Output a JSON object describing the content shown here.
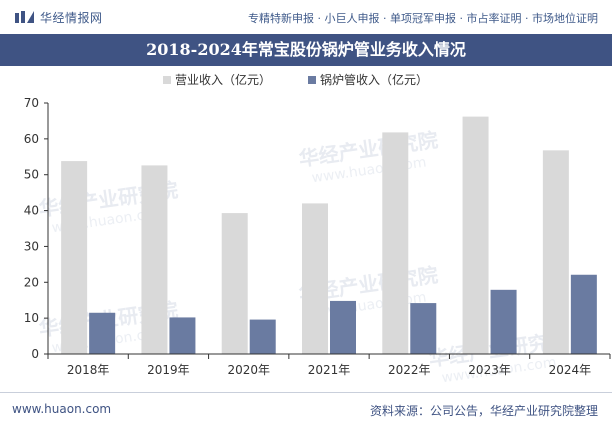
{
  "header": {
    "brand": "华经情报网",
    "services": "专精特新申报 · 小巨人申报 · 单项冠军申报 · 市占率证明 · 市场地位证明"
  },
  "footer": {
    "url": "www.huaon.com",
    "source": "资料来源：公司公告，华经产业研究院整理"
  },
  "watermark": {
    "cn": "华经产业研究院",
    "url": "www.huaon.com"
  },
  "colors": {
    "revenue": "#d9d9d9",
    "boiler": "#6a7ba1",
    "title_bg": "#3f5383"
  },
  "chart_data": {
    "type": "bar",
    "title": "2018-2024年常宝股份锅炉管业务收入情况",
    "categories": [
      "2018年",
      "2019年",
      "2020年",
      "2021年",
      "2022年",
      "2023年",
      "2024年"
    ],
    "series": [
      {
        "name": "营业收入（亿元）",
        "values": [
          53.8,
          52.6,
          39.3,
          42.0,
          61.8,
          66.2,
          56.8
        ]
      },
      {
        "name": "锅炉管收入（亿元）",
        "values": [
          11.5,
          10.2,
          9.6,
          14.8,
          14.2,
          17.9,
          22.1
        ]
      }
    ],
    "yticks": [
      0,
      10,
      20,
      30,
      40,
      50,
      60,
      70
    ],
    "ylim": [
      0,
      70
    ],
    "grid": false,
    "legend_position": "top-center"
  }
}
